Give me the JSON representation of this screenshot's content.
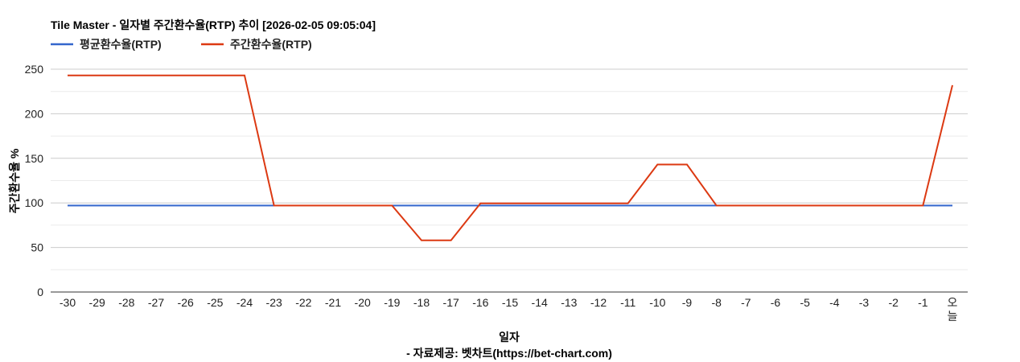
{
  "chart_data": {
    "type": "line",
    "title": "Tile Master - 일자별 주간환수율(RTP) 추이 [2026-02-05 09:05:04]",
    "xlabel": "일자",
    "ylabel": "주간환수율 %",
    "footer": "- 자료제공: 벳차트(https://bet-chart.com)",
    "categories": [
      "-30",
      "-29",
      "-28",
      "-27",
      "-26",
      "-25",
      "-24",
      "-23",
      "-22",
      "-21",
      "-20",
      "-19",
      "-18",
      "-17",
      "-16",
      "-15",
      "-14",
      "-13",
      "-12",
      "-11",
      "-10",
      "-9",
      "-8",
      "-7",
      "-6",
      "-5",
      "-4",
      "-3",
      "-2",
      "-1",
      "오늘"
    ],
    "ylim": [
      0,
      250
    ],
    "yticks": [
      0,
      50,
      100,
      150,
      200,
      250
    ],
    "grid": true,
    "legend_position": "top-left",
    "series": [
      {
        "name": "평균환수율(RTP)",
        "color": "#3366cc",
        "values": [
          97,
          97,
          97,
          97,
          97,
          97,
          97,
          97,
          97,
          97,
          97,
          97,
          97,
          97,
          97,
          97,
          97,
          97,
          97,
          97,
          97,
          97,
          97,
          97,
          97,
          97,
          97,
          97,
          97,
          97,
          97
        ]
      },
      {
        "name": "주간환수율(RTP)",
        "color": "#dc3912",
        "values": [
          243,
          243,
          243,
          243,
          243,
          243,
          243,
          97,
          97,
          97,
          97,
          97,
          58,
          58,
          99.5,
          99.5,
          99.5,
          99.5,
          99.5,
          99.5,
          143,
          143,
          97,
          97,
          97,
          97,
          97,
          97,
          97,
          97,
          232
        ]
      }
    ]
  }
}
